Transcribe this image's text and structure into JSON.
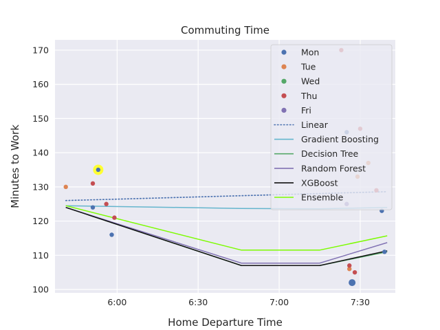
{
  "chart_data": {
    "type": "scatter",
    "title": "Commuting Time",
    "xlabel": "Home Departure Time",
    "ylabel": "Minutes to Work",
    "xlim": [
      "5:37",
      "7:43"
    ],
    "ylim": [
      99,
      173
    ],
    "x_ticks": [
      "6:00",
      "6:30",
      "7:00",
      "7:30"
    ],
    "y_ticks": [
      100,
      110,
      120,
      130,
      140,
      150,
      160,
      170
    ],
    "grid": true,
    "legend_placement": "top-right",
    "scatter_series": [
      {
        "name": "Mon",
        "color": "#4c72b0",
        "points": [
          {
            "x": "5:51",
            "y": 124
          },
          {
            "x": "5:53",
            "y": 135,
            "highlight": true
          },
          {
            "x": "5:58",
            "y": 116
          },
          {
            "x": "7:25",
            "y": 146
          },
          {
            "x": "7:27",
            "y": 102,
            "large": true
          },
          {
            "x": "7:38",
            "y": 123
          },
          {
            "x": "7:39",
            "y": 111
          }
        ]
      },
      {
        "name": "Tue",
        "color": "#dd8452",
        "points": [
          {
            "x": "5:41",
            "y": 130
          },
          {
            "x": "7:26",
            "y": 106
          },
          {
            "x": "7:29",
            "y": 133
          },
          {
            "x": "7:33",
            "y": 137
          }
        ]
      },
      {
        "name": "Wed",
        "color": "#55a868",
        "points": []
      },
      {
        "name": "Thu",
        "color": "#c44e52",
        "points": [
          {
            "x": "5:51",
            "y": 131
          },
          {
            "x": "5:56",
            "y": 125
          },
          {
            "x": "5:59",
            "y": 121
          },
          {
            "x": "7:23",
            "y": 170
          },
          {
            "x": "7:26",
            "y": 107
          },
          {
            "x": "7:28",
            "y": 105
          },
          {
            "x": "7:30",
            "y": 147
          },
          {
            "x": "7:36",
            "y": 129
          }
        ]
      },
      {
        "name": "Fri",
        "color": "#8172b3",
        "points": [
          {
            "x": "7:25",
            "y": 125
          }
        ]
      }
    ],
    "line_series": [
      {
        "name": "Linear",
        "color": "#4c72b0",
        "dash": "dotted",
        "x": [
          "5:41",
          "7:40"
        ],
        "y": [
          126,
          128.6
        ]
      },
      {
        "name": "Gradient Boosting",
        "color": "#64b5cd",
        "x": [
          "5:41",
          "6:46",
          "7:15",
          "7:40"
        ],
        "y": [
          124.5,
          123.7,
          123.6,
          124
        ]
      },
      {
        "name": "Decision Tree",
        "color": "#55a868",
        "x": [
          "5:41",
          "6:46",
          "7:15",
          "7:40"
        ],
        "y": [
          124,
          107,
          107,
          111
        ]
      },
      {
        "name": "Random Forest",
        "color": "#8172b3",
        "x": [
          "5:41",
          "6:46",
          "7:15",
          "7:40"
        ],
        "y": [
          124,
          107.7,
          107.7,
          113.7
        ]
      },
      {
        "name": "XGBoost",
        "color": "#111111",
        "x": [
          "5:41",
          "6:46",
          "7:15",
          "7:40"
        ],
        "y": [
          124,
          107,
          107,
          111.3
        ]
      },
      {
        "name": "Ensemble",
        "color": "#7cfc00",
        "x": [
          "5:41",
          "6:46",
          "7:15",
          "7:40"
        ],
        "y": [
          124.5,
          111.5,
          111.5,
          115.7
        ]
      }
    ]
  }
}
